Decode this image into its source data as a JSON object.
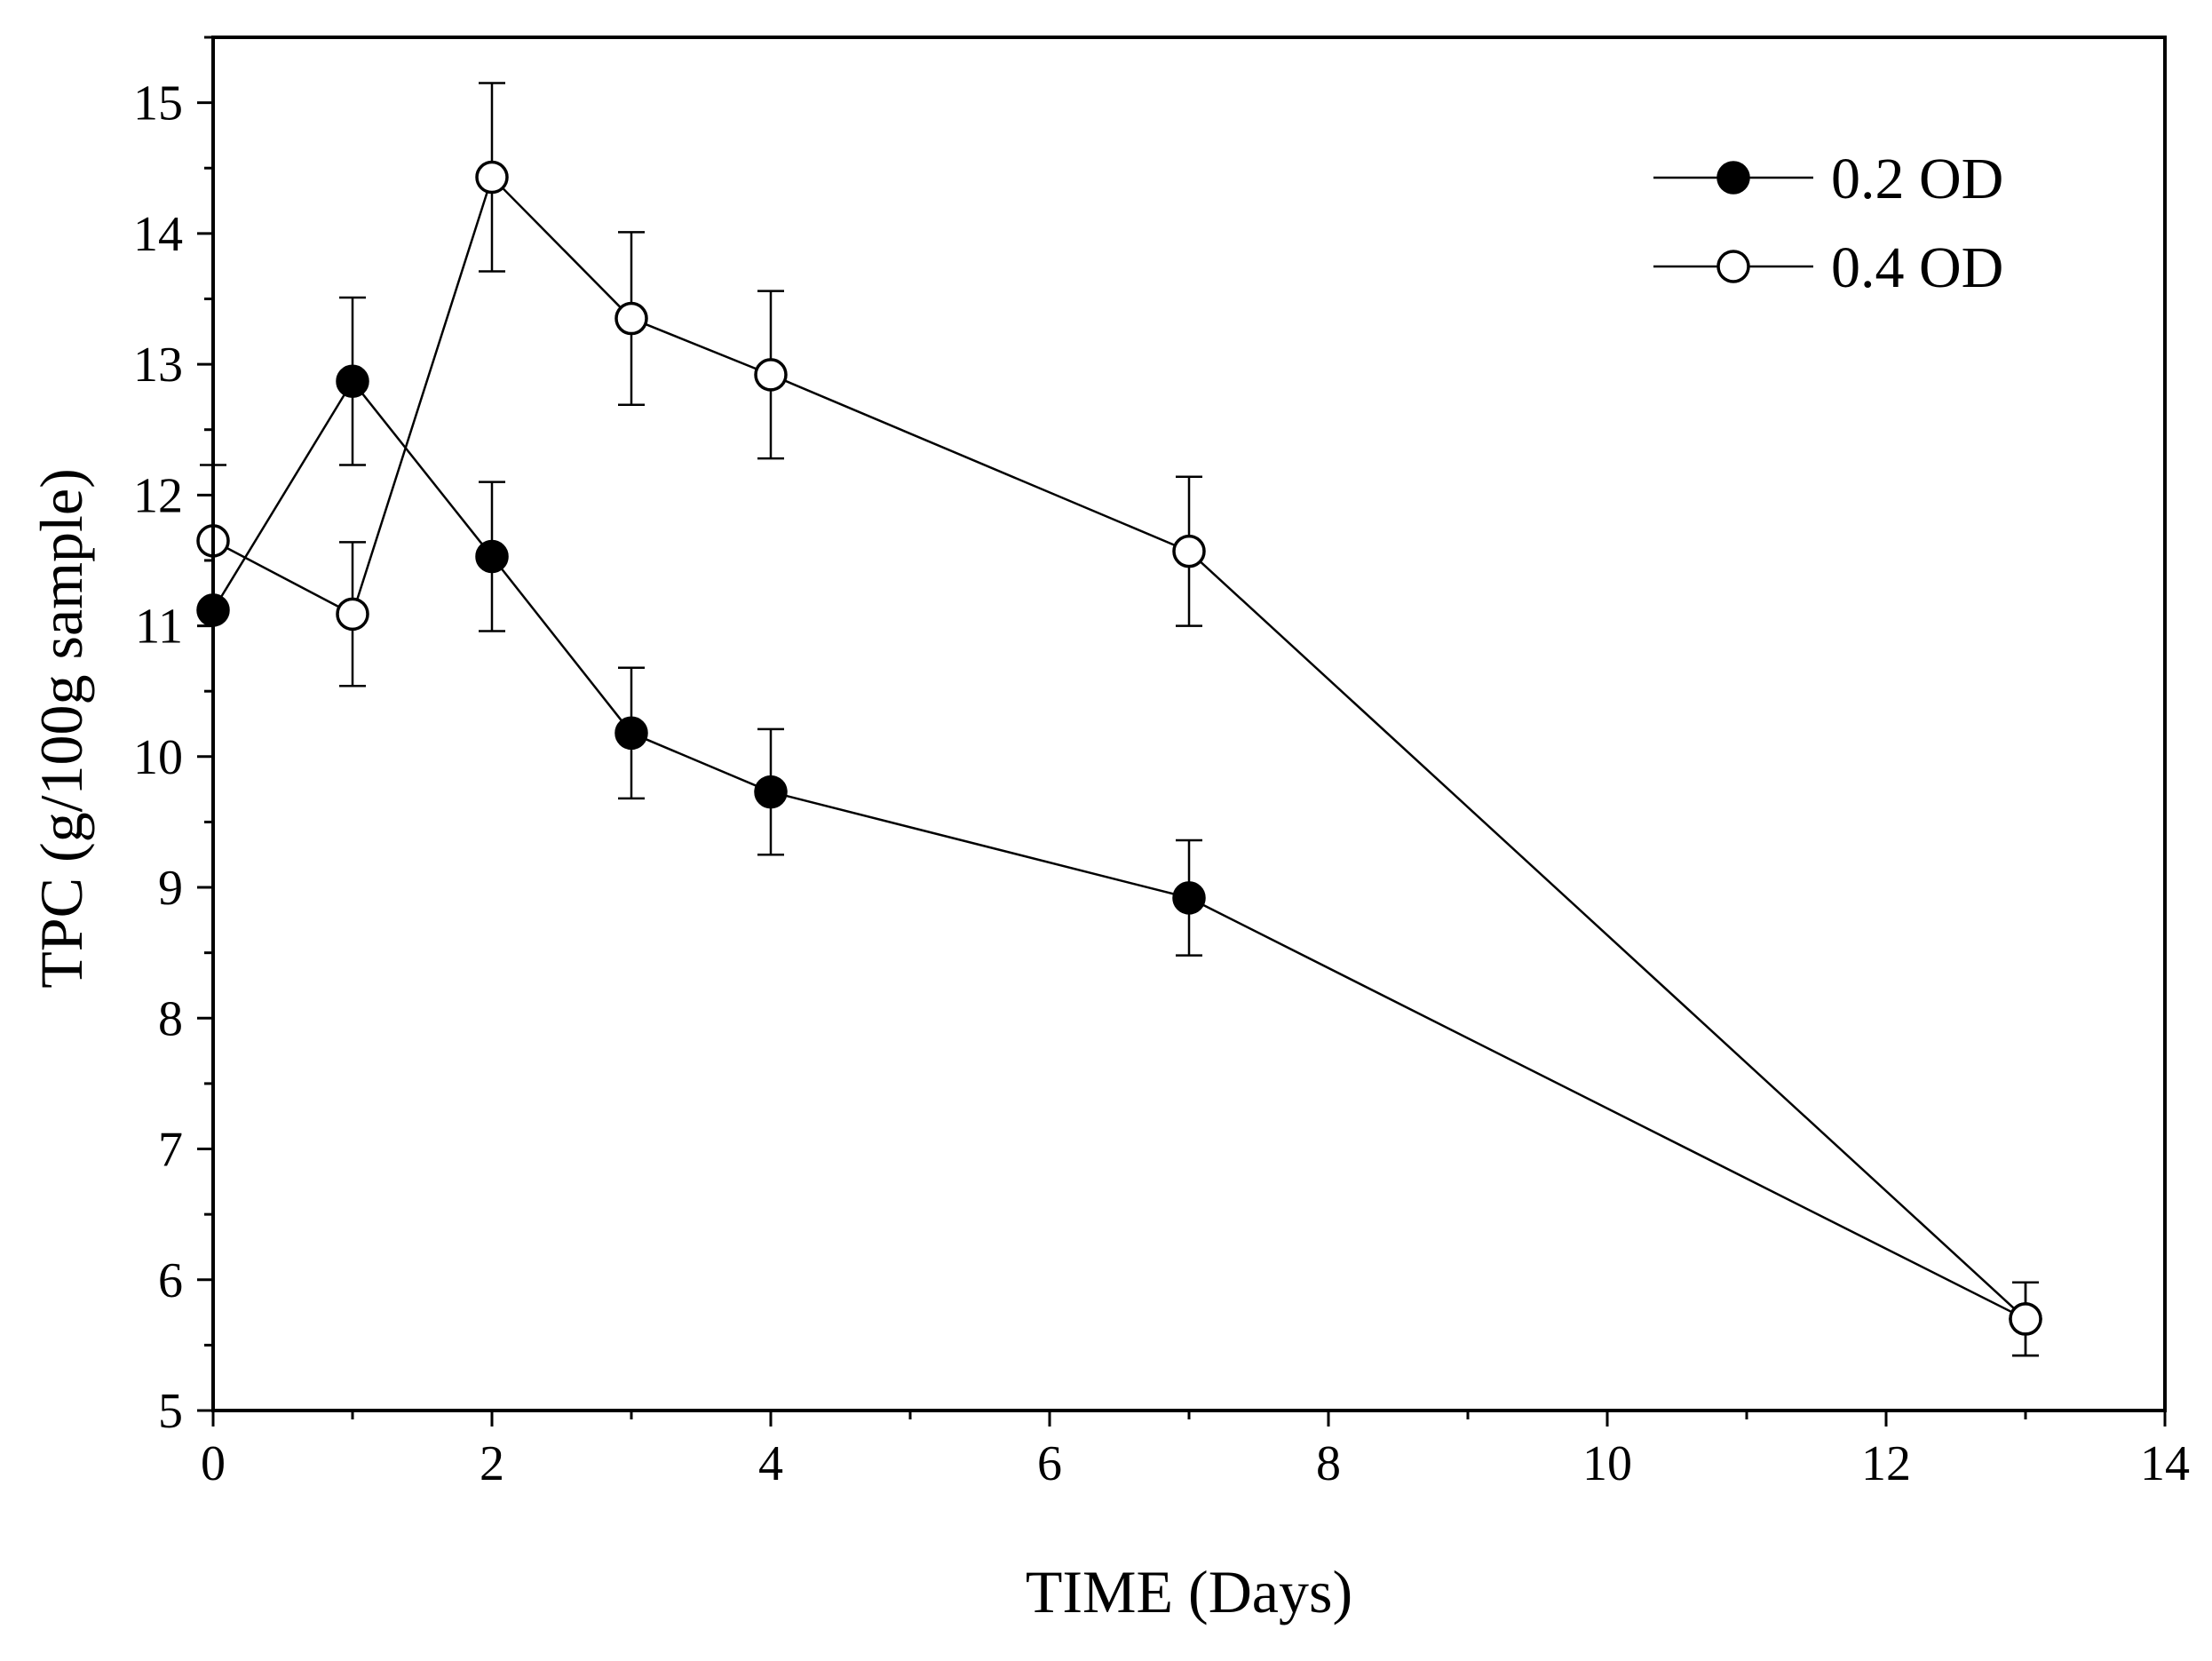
{
  "chart_data": {
    "type": "line",
    "title": "",
    "xlabel": "TIME (Days)",
    "ylabel": "TPC (g/100g sample)",
    "xlim": [
      0,
      14
    ],
    "ylim": [
      5,
      15.5
    ],
    "x_ticks": [
      0,
      2,
      4,
      6,
      8,
      10,
      12,
      14
    ],
    "y_ticks": [
      5,
      6,
      7,
      8,
      9,
      10,
      11,
      12,
      13,
      14,
      15
    ],
    "grid": false,
    "legend_position": "top-right",
    "series": [
      {
        "name": "0.2 OD",
        "marker": "filled-circle",
        "x": [
          0,
          1,
          2,
          3,
          4,
          7,
          13
        ],
        "values": [
          11.12,
          12.87,
          11.53,
          10.18,
          9.73,
          8.92,
          5.7
        ],
        "errors": [
          0.0,
          0.64,
          0.57,
          0.5,
          0.48,
          0.44,
          0.28
        ]
      },
      {
        "name": "0.4 OD",
        "marker": "open-circle",
        "x": [
          0,
          1,
          2,
          3,
          4,
          7,
          13
        ],
        "values": [
          11.65,
          11.09,
          14.43,
          13.35,
          12.92,
          11.57,
          5.7
        ],
        "errors": [
          0.58,
          0.55,
          0.72,
          0.66,
          0.64,
          0.57,
          0.28
        ]
      }
    ]
  }
}
